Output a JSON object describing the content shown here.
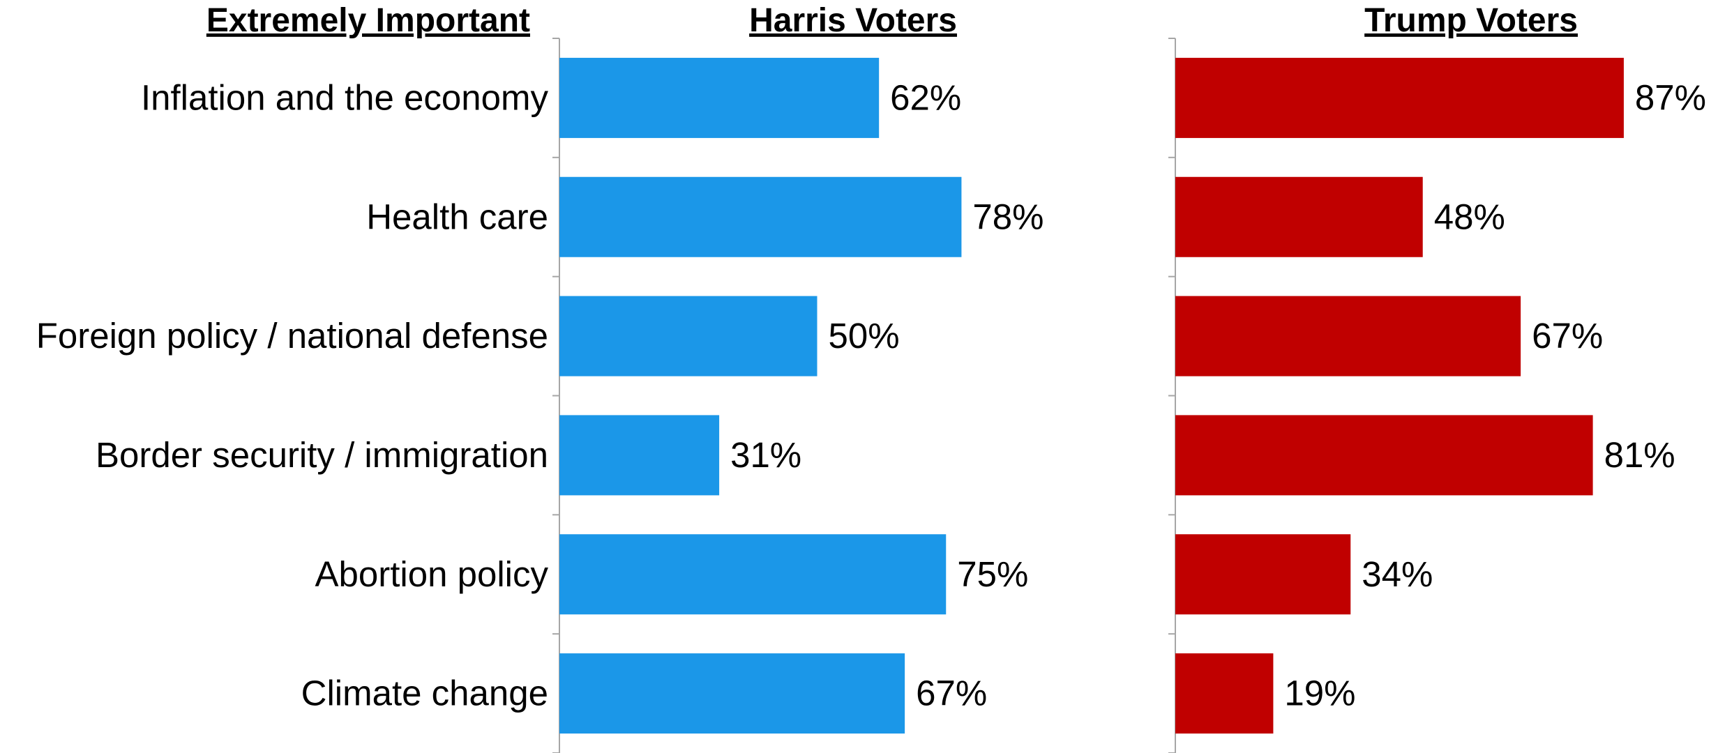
{
  "chart_data": {
    "type": "bar",
    "row_header": "Extremely Important",
    "categories": [
      "Inflation and the economy",
      "Health care",
      "Foreign policy / national defense",
      "Border security / immigration",
      "Abortion policy",
      "Climate change"
    ],
    "series": [
      {
        "name": "Harris Voters",
        "values": [
          62,
          78,
          50,
          31,
          75,
          67
        ],
        "color": "#1b97e8"
      },
      {
        "name": "Trump Voters",
        "values": [
          87,
          48,
          67,
          81,
          34,
          19
        ],
        "color": "#c00000"
      }
    ],
    "value_suffix": "%",
    "xlim": [
      0,
      100
    ],
    "orientation": "horizontal",
    "layout": "two-panel"
  }
}
